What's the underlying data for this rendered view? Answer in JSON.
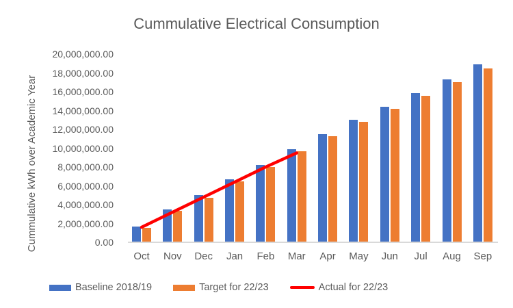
{
  "chart_data": {
    "type": "bar",
    "title": "Cummulative Electrical Consumption",
    "ylabel": "Cummulative kWh over Academic Year",
    "xlabel": "",
    "categories": [
      "Oct",
      "Nov",
      "Dec",
      "Jan",
      "Feb",
      "Mar",
      "Apr",
      "May",
      "Jun",
      "Jul",
      "Aug",
      "Sep"
    ],
    "series": [
      {
        "name": "Baseline 2018/19",
        "type": "bar",
        "color": "#4472C4",
        "values": [
          1700000,
          3500000,
          5000000,
          6700000,
          8250000,
          9900000,
          11500000,
          13000000,
          14400000,
          15850000,
          17300000,
          18900000
        ]
      },
      {
        "name": "Target for 22/23",
        "type": "bar",
        "color": "#ED7D31",
        "values": [
          1500000,
          3350000,
          4750000,
          6500000,
          8000000,
          9700000,
          11300000,
          12800000,
          14150000,
          15600000,
          17000000,
          18500000
        ]
      },
      {
        "name": "Actual for 22/23",
        "type": "line",
        "color": "#FF0000",
        "values": [
          1600000,
          3200000,
          4800000,
          6400000,
          8000000,
          9500000,
          null,
          null,
          null,
          null,
          null,
          null
        ]
      }
    ],
    "ylim": [
      0,
      20000000
    ],
    "ytick_step": 2000000,
    "ytick_labels": [
      "0.00",
      "2,000,000.00",
      "4,000,000.00",
      "6,000,000.00",
      "8,000,000.00",
      "10,000,000.00",
      "12,000,000.00",
      "14,000,000.00",
      "16,000,000.00",
      "18,000,000.00",
      "20,000,000.00"
    ],
    "gridlines": false,
    "legend_position": "bottom"
  },
  "style": {
    "text_color": "#595959",
    "axis_line_color": "#D9D9D9",
    "background": "#FFFFFF"
  }
}
